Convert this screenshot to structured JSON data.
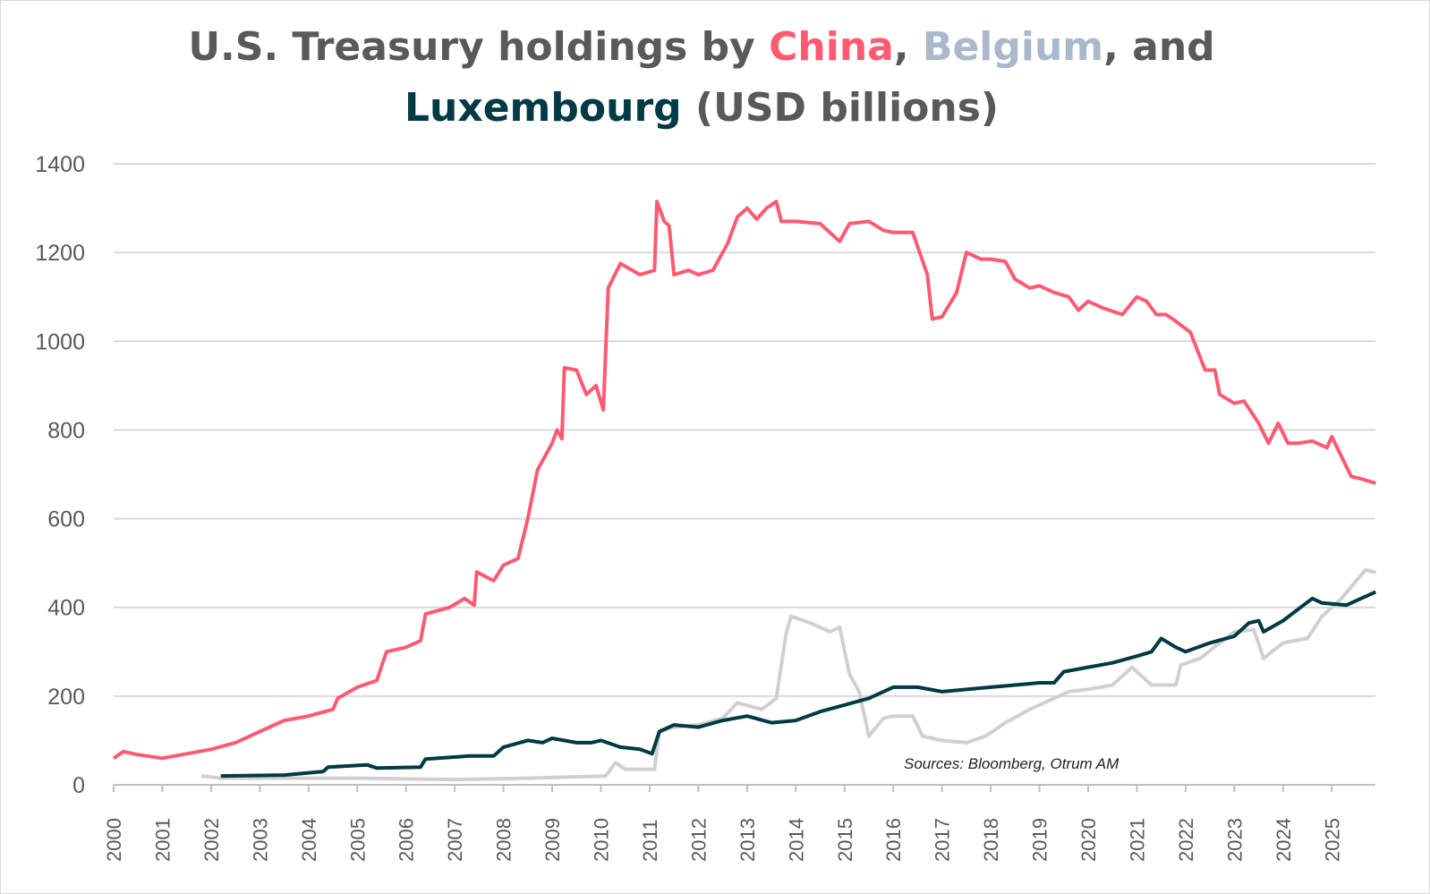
{
  "title": {
    "prefix": "U.S. Treasury holdings by ",
    "china": "China",
    "sep1": ", ",
    "belgium": "Belgium",
    "sep2": ", and",
    "luxembourg": "Luxembourg",
    "suffix": " (USD billions)"
  },
  "chart_data": {
    "type": "line",
    "title": "U.S. Treasury holdings by China, Belgium, and Luxembourg (USD billions)",
    "xlabel": "",
    "ylabel": "",
    "xlim": [
      2000,
      2025.9
    ],
    "ylim": [
      0,
      1400
    ],
    "y_ticks": [
      0,
      200,
      400,
      600,
      800,
      1000,
      1200,
      1400
    ],
    "x_ticks": [
      2000,
      2001,
      2002,
      2003,
      2004,
      2005,
      2006,
      2007,
      2008,
      2009,
      2010,
      2011,
      2012,
      2013,
      2014,
      2015,
      2016,
      2017,
      2018,
      2019,
      2020,
      2021,
      2022,
      2023,
      2024,
      2025
    ],
    "grid": "horizontal",
    "annotation": "Sources: Bloomberg, Otrum AM",
    "series": [
      {
        "name": "China",
        "color": "#ff5a72",
        "points": [
          [
            2000.0,
            60
          ],
          [
            2000.2,
            75
          ],
          [
            2000.5,
            68
          ],
          [
            2001.0,
            60
          ],
          [
            2001.5,
            70
          ],
          [
            2002.0,
            80
          ],
          [
            2002.5,
            95
          ],
          [
            2003.0,
            120
          ],
          [
            2003.5,
            145
          ],
          [
            2004.0,
            155
          ],
          [
            2004.5,
            170
          ],
          [
            2004.6,
            195
          ],
          [
            2005.0,
            220
          ],
          [
            2005.4,
            235
          ],
          [
            2005.6,
            300
          ],
          [
            2006.0,
            310
          ],
          [
            2006.3,
            325
          ],
          [
            2006.4,
            385
          ],
          [
            2006.9,
            400
          ],
          [
            2007.2,
            420
          ],
          [
            2007.4,
            405
          ],
          [
            2007.45,
            480
          ],
          [
            2007.8,
            460
          ],
          [
            2008.0,
            495
          ],
          [
            2008.3,
            510
          ],
          [
            2008.5,
            600
          ],
          [
            2008.7,
            710
          ],
          [
            2009.0,
            770
          ],
          [
            2009.1,
            800
          ],
          [
            2009.2,
            780
          ],
          [
            2009.25,
            940
          ],
          [
            2009.5,
            935
          ],
          [
            2009.7,
            880
          ],
          [
            2009.9,
            900
          ],
          [
            2010.05,
            845
          ],
          [
            2010.15,
            1120
          ],
          [
            2010.4,
            1175
          ],
          [
            2010.8,
            1150
          ],
          [
            2011.1,
            1160
          ],
          [
            2011.15,
            1315
          ],
          [
            2011.3,
            1270
          ],
          [
            2011.4,
            1260
          ],
          [
            2011.5,
            1150
          ],
          [
            2011.8,
            1160
          ],
          [
            2012.0,
            1150
          ],
          [
            2012.3,
            1160
          ],
          [
            2012.6,
            1220
          ],
          [
            2012.8,
            1280
          ],
          [
            2013.0,
            1300
          ],
          [
            2013.2,
            1275
          ],
          [
            2013.4,
            1300
          ],
          [
            2013.6,
            1315
          ],
          [
            2013.7,
            1270
          ],
          [
            2014.0,
            1270
          ],
          [
            2014.5,
            1265
          ],
          [
            2014.9,
            1225
          ],
          [
            2015.1,
            1265
          ],
          [
            2015.5,
            1270
          ],
          [
            2015.8,
            1250
          ],
          [
            2016.0,
            1245
          ],
          [
            2016.4,
            1245
          ],
          [
            2016.7,
            1150
          ],
          [
            2016.8,
            1050
          ],
          [
            2017.0,
            1055
          ],
          [
            2017.3,
            1110
          ],
          [
            2017.5,
            1200
          ],
          [
            2017.8,
            1185
          ],
          [
            2018.0,
            1185
          ],
          [
            2018.3,
            1180
          ],
          [
            2018.5,
            1140
          ],
          [
            2018.8,
            1120
          ],
          [
            2019.0,
            1125
          ],
          [
            2019.3,
            1110
          ],
          [
            2019.6,
            1100
          ],
          [
            2019.8,
            1070
          ],
          [
            2020.0,
            1090
          ],
          [
            2020.3,
            1075
          ],
          [
            2020.7,
            1060
          ],
          [
            2021.0,
            1100
          ],
          [
            2021.2,
            1090
          ],
          [
            2021.4,
            1060
          ],
          [
            2021.6,
            1060
          ],
          [
            2021.8,
            1045
          ],
          [
            2022.1,
            1020
          ],
          [
            2022.4,
            935
          ],
          [
            2022.6,
            935
          ],
          [
            2022.7,
            880
          ],
          [
            2023.0,
            860
          ],
          [
            2023.2,
            865
          ],
          [
            2023.5,
            815
          ],
          [
            2023.7,
            770
          ],
          [
            2023.9,
            815
          ],
          [
            2024.1,
            770
          ],
          [
            2024.3,
            770
          ],
          [
            2024.6,
            775
          ],
          [
            2024.9,
            760
          ],
          [
            2025.0,
            785
          ],
          [
            2025.2,
            740
          ],
          [
            2025.4,
            695
          ],
          [
            2025.6,
            690
          ],
          [
            2025.9,
            680
          ]
        ]
      },
      {
        "name": "Belgium",
        "color": "#d0d0d0",
        "points": [
          [
            2001.8,
            20
          ],
          [
            2002.2,
            15
          ],
          [
            2003.0,
            15
          ],
          [
            2005.0,
            15
          ],
          [
            2007.0,
            12
          ],
          [
            2008.5,
            15
          ],
          [
            2010.1,
            20
          ],
          [
            2010.3,
            50
          ],
          [
            2010.5,
            35
          ],
          [
            2011.1,
            35
          ],
          [
            2011.2,
            120
          ],
          [
            2011.5,
            130
          ],
          [
            2012.0,
            135
          ],
          [
            2012.5,
            150
          ],
          [
            2012.8,
            185
          ],
          [
            2013.3,
            170
          ],
          [
            2013.6,
            195
          ],
          [
            2013.8,
            340
          ],
          [
            2013.9,
            380
          ],
          [
            2014.3,
            365
          ],
          [
            2014.7,
            345
          ],
          [
            2014.9,
            355
          ],
          [
            2015.1,
            250
          ],
          [
            2015.3,
            210
          ],
          [
            2015.5,
            110
          ],
          [
            2015.8,
            150
          ],
          [
            2016.0,
            155
          ],
          [
            2016.4,
            155
          ],
          [
            2016.6,
            110
          ],
          [
            2017.0,
            100
          ],
          [
            2017.5,
            95
          ],
          [
            2017.9,
            110
          ],
          [
            2018.3,
            140
          ],
          [
            2018.8,
            170
          ],
          [
            2019.2,
            190
          ],
          [
            2019.6,
            210
          ],
          [
            2020.0,
            215
          ],
          [
            2020.5,
            225
          ],
          [
            2020.9,
            265
          ],
          [
            2021.3,
            225
          ],
          [
            2021.8,
            225
          ],
          [
            2021.9,
            270
          ],
          [
            2022.3,
            285
          ],
          [
            2022.7,
            320
          ],
          [
            2023.0,
            345
          ],
          [
            2023.4,
            350
          ],
          [
            2023.6,
            285
          ],
          [
            2024.0,
            320
          ],
          [
            2024.5,
            330
          ],
          [
            2024.8,
            380
          ],
          [
            2025.2,
            420
          ],
          [
            2025.5,
            460
          ],
          [
            2025.7,
            485
          ],
          [
            2025.9,
            478
          ]
        ]
      },
      {
        "name": "Luxembourg",
        "color": "#003a44",
        "points": [
          [
            2002.2,
            20
          ],
          [
            2003.5,
            22
          ],
          [
            2004.3,
            30
          ],
          [
            2004.4,
            40
          ],
          [
            2005.2,
            45
          ],
          [
            2005.4,
            38
          ],
          [
            2006.3,
            40
          ],
          [
            2006.4,
            58
          ],
          [
            2007.3,
            65
          ],
          [
            2007.8,
            65
          ],
          [
            2008.0,
            85
          ],
          [
            2008.5,
            100
          ],
          [
            2008.8,
            95
          ],
          [
            2009.0,
            105
          ],
          [
            2009.5,
            95
          ],
          [
            2009.8,
            95
          ],
          [
            2010.0,
            100
          ],
          [
            2010.4,
            85
          ],
          [
            2010.8,
            80
          ],
          [
            2011.05,
            70
          ],
          [
            2011.2,
            120
          ],
          [
            2011.5,
            135
          ],
          [
            2012.0,
            130
          ],
          [
            2012.5,
            145
          ],
          [
            2013.0,
            155
          ],
          [
            2013.5,
            140
          ],
          [
            2014.0,
            145
          ],
          [
            2014.5,
            165
          ],
          [
            2015.0,
            180
          ],
          [
            2015.5,
            195
          ],
          [
            2016.0,
            220
          ],
          [
            2016.5,
            220
          ],
          [
            2017.0,
            210
          ],
          [
            2017.5,
            215
          ],
          [
            2018.0,
            220
          ],
          [
            2018.5,
            225
          ],
          [
            2019.0,
            230
          ],
          [
            2019.3,
            230
          ],
          [
            2019.5,
            255
          ],
          [
            2020.0,
            265
          ],
          [
            2020.5,
            275
          ],
          [
            2021.0,
            290
          ],
          [
            2021.3,
            300
          ],
          [
            2021.5,
            330
          ],
          [
            2021.8,
            310
          ],
          [
            2022.0,
            300
          ],
          [
            2022.5,
            320
          ],
          [
            2023.0,
            335
          ],
          [
            2023.3,
            365
          ],
          [
            2023.5,
            370
          ],
          [
            2023.6,
            345
          ],
          [
            2024.0,
            370
          ],
          [
            2024.3,
            395
          ],
          [
            2024.6,
            420
          ],
          [
            2024.8,
            410
          ],
          [
            2025.3,
            405
          ],
          [
            2025.6,
            420
          ],
          [
            2025.9,
            435
          ]
        ]
      }
    ]
  }
}
